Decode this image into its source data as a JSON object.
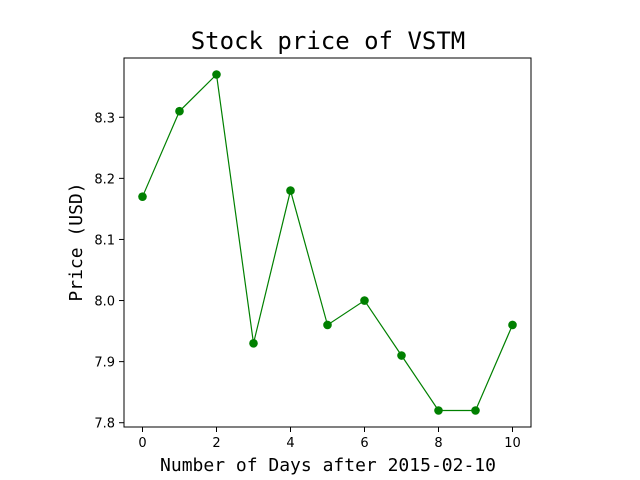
{
  "chart_data": {
    "type": "line",
    "title": "Stock price of VSTM",
    "xlabel": "Number of Days after 2015-02-10",
    "ylabel": "Price (USD)",
    "x": [
      0,
      1,
      2,
      3,
      4,
      5,
      6,
      7,
      8,
      9,
      10
    ],
    "series": [
      {
        "values": [
          8.17,
          8.31,
          8.37,
          7.93,
          8.18,
          7.96,
          8.0,
          7.91,
          7.82,
          7.82,
          7.96
        ],
        "color": "#008000",
        "marker": "circle"
      }
    ],
    "xticks": [
      0,
      2,
      4,
      6,
      8,
      10
    ],
    "xtick_labels": [
      "0",
      "2",
      "4",
      "6",
      "8",
      "10"
    ],
    "yticks": [
      7.8,
      7.9,
      8.0,
      8.1,
      8.2,
      8.3
    ],
    "ytick_labels": [
      "7.8",
      "7.9",
      "8.0",
      "8.1",
      "8.2",
      "8.3"
    ],
    "xlim": [
      -0.5,
      10.5
    ],
    "ylim": [
      7.793,
      8.397
    ],
    "grid": false,
    "legend": "none"
  }
}
